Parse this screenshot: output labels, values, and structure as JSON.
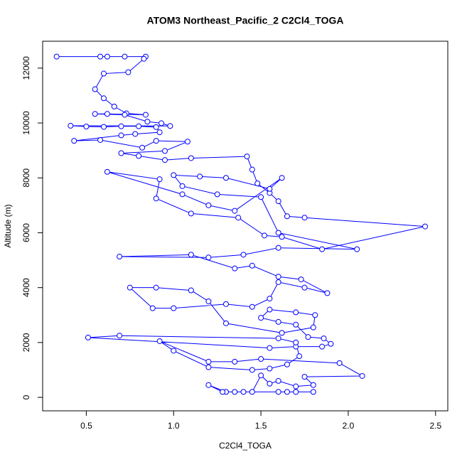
{
  "chart_data": {
    "type": "line",
    "title": "ATOM3 Northeast_Pacific_2 C2Cl4_TOGA",
    "x_label": "C2Cl4_TOGA",
    "y_label": "Altitude (m)",
    "xlim": [
      0.25,
      2.57
    ],
    "ylim": [
      -490,
      12980
    ],
    "xticks": [
      0.5,
      {
        "value": 1,
        "label": "1.0"
      },
      1.5,
      {
        "value": 2,
        "label": "2.0"
      },
      2.5
    ],
    "yticks": [
      0,
      2000,
      4000,
      6000,
      8000,
      10000,
      12000
    ],
    "grid": false,
    "marker": "open-circle",
    "x": [
      0.33,
      0.58,
      0.62,
      0.72,
      0.84,
      0.83,
      0.74,
      0.6,
      0.55,
      0.6,
      0.66,
      0.73,
      0.84,
      0.62,
      0.55,
      0.72,
      0.85,
      0.93,
      0.98,
      0.41,
      0.5,
      0.6,
      0.7,
      0.8,
      0.9,
      0.92,
      0.78,
      0.7,
      0.43,
      0.58,
      0.82,
      0.9,
      1.08,
      0.95,
      0.7,
      0.8,
      0.95,
      1.1,
      1.42,
      1.45,
      1.48,
      1.55,
      1.6,
      1.65,
      1.75,
      2.44,
      1.85,
      1.62,
      1.52,
      1.37,
      1.1,
      0.9,
      0.92,
      0.62,
      1.05,
      1.2,
      1.35,
      1.62,
      1.55,
      1.3,
      1.15,
      1.0,
      1.05,
      1.25,
      1.5,
      1.6,
      2.05,
      1.6,
      1.4,
      1.2,
      0.69,
      1.1,
      1.35,
      1.45,
      1.6,
      1.73,
      1.88,
      1.75,
      1.6,
      1.55,
      1.45,
      1.3,
      1.0,
      0.88,
      0.75,
      0.9,
      1.1,
      1.2,
      1.3,
      1.62,
      1.8,
      1.81,
      1.7,
      1.55,
      1.5,
      1.6,
      1.7,
      1.77,
      1.86,
      1.9,
      1.85,
      1.7,
      1.55,
      0.51,
      0.69,
      1.6,
      1.7,
      1.72,
      1.65,
      1.55,
      1.45,
      1.2,
      1.0,
      0.92,
      1.2,
      1.35,
      1.5,
      1.95,
      2.08,
      1.75,
      1.8,
      1.7,
      1.6,
      1.55,
      1.5,
      1.45,
      1.6,
      1.7,
      1.8,
      1.65,
      1.4,
      1.3,
      1.2,
      1.28,
      1.35
    ],
    "series": [
      {
        "color": "#0000ff",
        "values": [
          12420,
          12420,
          12420,
          12420,
          12420,
          12340,
          11850,
          11800,
          11230,
          10900,
          10600,
          10350,
          10300,
          10330,
          10330,
          10300,
          10050,
          9990,
          9890,
          9900,
          9870,
          9860,
          9880,
          9880,
          9850,
          9660,
          9600,
          9550,
          9350,
          9380,
          9100,
          9350,
          9320,
          8980,
          8900,
          8800,
          8650,
          8720,
          8780,
          8300,
          7800,
          7450,
          7150,
          6600,
          6550,
          6230,
          5400,
          5850,
          5900,
          6550,
          6700,
          7250,
          7950,
          8220,
          7400,
          7000,
          6800,
          8000,
          7600,
          8000,
          8050,
          8100,
          7700,
          7400,
          7300,
          6000,
          5400,
          5450,
          5200,
          5100,
          5130,
          5200,
          4700,
          4800,
          4400,
          4300,
          3800,
          4000,
          4200,
          3600,
          3300,
          3400,
          3250,
          3250,
          4000,
          4000,
          3900,
          3500,
          2700,
          2350,
          2550,
          3000,
          3100,
          3200,
          2900,
          2750,
          2650,
          2200,
          2150,
          1950,
          1850,
          1850,
          1800,
          2180,
          2250,
          2150,
          2000,
          1500,
          1200,
          1050,
          1000,
          1100,
          1700,
          2050,
          1300,
          1300,
          1400,
          1250,
          780,
          750,
          450,
          400,
          600,
          500,
          800,
          200,
          200,
          200,
          200,
          200,
          200,
          200,
          450,
          200,
          200
        ]
      }
    ]
  }
}
